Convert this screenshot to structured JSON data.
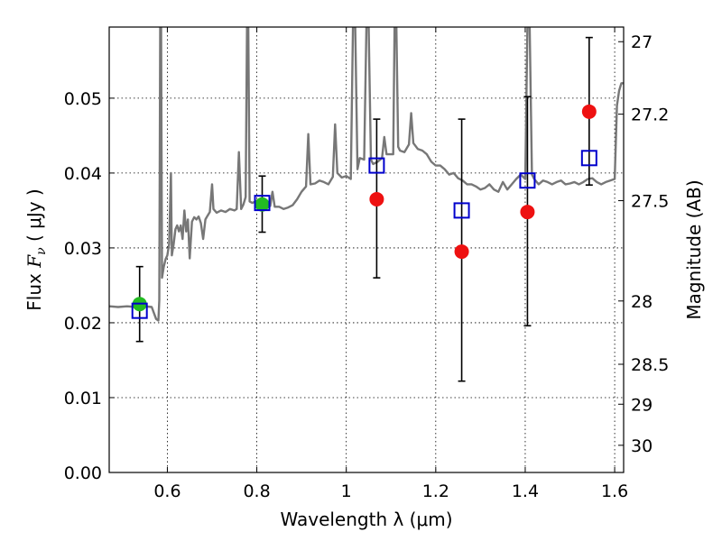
{
  "chart_data": {
    "type": "scatter",
    "title": "",
    "xlabel": "Wavelength  λ (μm)",
    "ylabel": "Flux  F_ν  ( μJy )",
    "ylabel_text": "Flux  ",
    "ylabel_sym": "F",
    "ylabel_sub": "ν",
    "ylabel_unit": "  ( μJy )",
    "y2label": "Magnitude (AB)",
    "xlim": [
      0.47,
      1.62
    ],
    "ylim": [
      0.0,
      0.0595
    ],
    "grid": true,
    "x_ticks": [
      0.6,
      0.8,
      1.0,
      1.2,
      1.4,
      1.6
    ],
    "x_tick_labels": [
      "0.6",
      "0.8",
      "1",
      "1.2",
      "1.4",
      "1.6"
    ],
    "y_ticks": [
      0.0,
      0.01,
      0.02,
      0.03,
      0.04,
      0.05
    ],
    "y_tick_labels": [
      "0.00",
      "0.01",
      "0.02",
      "0.03",
      "0.04",
      "0.05"
    ],
    "mag_ticks": [
      27,
      27.2,
      27.5,
      28,
      28.5,
      29,
      30
    ],
    "mag_tick_labels": [
      "27",
      "27.2",
      "27.5",
      "28",
      "28.5",
      "29",
      "30"
    ],
    "colors": {
      "spectrum": "#777777",
      "green_marker": "#22bb22",
      "red_marker": "#ee1111",
      "model_square": "#0000cc",
      "errorbar": "#000000"
    },
    "spectrum": [
      [
        0.47,
        0.0222
      ],
      [
        0.49,
        0.0221
      ],
      [
        0.51,
        0.0222
      ],
      [
        0.53,
        0.0221
      ],
      [
        0.55,
        0.0222
      ],
      [
        0.565,
        0.0221
      ],
      [
        0.575,
        0.0205
      ],
      [
        0.58,
        0.0203
      ],
      [
        0.582,
        0.023
      ],
      [
        0.584,
        0.0595
      ],
      [
        0.586,
        0.0595
      ],
      [
        0.588,
        0.026
      ],
      [
        0.592,
        0.0275
      ],
      [
        0.596,
        0.0285
      ],
      [
        0.6,
        0.029
      ],
      [
        0.604,
        0.0305
      ],
      [
        0.608,
        0.04
      ],
      [
        0.61,
        0.029
      ],
      [
        0.614,
        0.0305
      ],
      [
        0.618,
        0.0325
      ],
      [
        0.622,
        0.033
      ],
      [
        0.626,
        0.0322
      ],
      [
        0.63,
        0.033
      ],
      [
        0.634,
        0.0312
      ],
      [
        0.638,
        0.035
      ],
      [
        0.642,
        0.0322
      ],
      [
        0.646,
        0.0338
      ],
      [
        0.65,
        0.0286
      ],
      [
        0.655,
        0.0335
      ],
      [
        0.66,
        0.0341
      ],
      [
        0.665,
        0.0338
      ],
      [
        0.67,
        0.0342
      ],
      [
        0.675,
        0.0333
      ],
      [
        0.68,
        0.0312
      ],
      [
        0.685,
        0.0338
      ],
      [
        0.69,
        0.0343
      ],
      [
        0.695,
        0.0348
      ],
      [
        0.7,
        0.0385
      ],
      [
        0.703,
        0.0352
      ],
      [
        0.71,
        0.0347
      ],
      [
        0.72,
        0.035
      ],
      [
        0.73,
        0.0348
      ],
      [
        0.74,
        0.0352
      ],
      [
        0.75,
        0.035
      ],
      [
        0.755,
        0.0352
      ],
      [
        0.76,
        0.0428
      ],
      [
        0.765,
        0.0352
      ],
      [
        0.77,
        0.0358
      ],
      [
        0.775,
        0.0368
      ],
      [
        0.778,
        0.0595
      ],
      [
        0.781,
        0.0595
      ],
      [
        0.784,
        0.0362
      ],
      [
        0.79,
        0.036
      ],
      [
        0.8,
        0.0363
      ],
      [
        0.81,
        0.0366
      ],
      [
        0.82,
        0.036
      ],
      [
        0.83,
        0.0356
      ],
      [
        0.835,
        0.0375
      ],
      [
        0.84,
        0.0355
      ],
      [
        0.85,
        0.0355
      ],
      [
        0.86,
        0.0352
      ],
      [
        0.87,
        0.0354
      ],
      [
        0.88,
        0.0357
      ],
      [
        0.89,
        0.0365
      ],
      [
        0.9,
        0.0375
      ],
      [
        0.91,
        0.0382
      ],
      [
        0.915,
        0.0452
      ],
      [
        0.92,
        0.0385
      ],
      [
        0.93,
        0.0386
      ],
      [
        0.94,
        0.039
      ],
      [
        0.95,
        0.0388
      ],
      [
        0.96,
        0.0385
      ],
      [
        0.97,
        0.0395
      ],
      [
        0.975,
        0.0465
      ],
      [
        0.98,
        0.04
      ],
      [
        0.99,
        0.0394
      ],
      [
        1.0,
        0.0396
      ],
      [
        1.01,
        0.0392
      ],
      [
        1.015,
        0.0595
      ],
      [
        1.02,
        0.0595
      ],
      [
        1.025,
        0.0405
      ],
      [
        1.03,
        0.042
      ],
      [
        1.04,
        0.0418
      ],
      [
        1.045,
        0.0595
      ],
      [
        1.05,
        0.0595
      ],
      [
        1.055,
        0.0418
      ],
      [
        1.06,
        0.0412
      ],
      [
        1.07,
        0.0415
      ],
      [
        1.08,
        0.042
      ],
      [
        1.085,
        0.0448
      ],
      [
        1.09,
        0.0425
      ],
      [
        1.1,
        0.0425
      ],
      [
        1.105,
        0.0425
      ],
      [
        1.108,
        0.0595
      ],
      [
        1.112,
        0.0595
      ],
      [
        1.116,
        0.0435
      ],
      [
        1.12,
        0.043
      ],
      [
        1.13,
        0.0428
      ],
      [
        1.14,
        0.0438
      ],
      [
        1.145,
        0.048
      ],
      [
        1.15,
        0.044
      ],
      [
        1.16,
        0.0432
      ],
      [
        1.17,
        0.043
      ],
      [
        1.18,
        0.0425
      ],
      [
        1.19,
        0.0415
      ],
      [
        1.2,
        0.041
      ],
      [
        1.21,
        0.041
      ],
      [
        1.22,
        0.0405
      ],
      [
        1.23,
        0.0398
      ],
      [
        1.24,
        0.04
      ],
      [
        1.25,
        0.0393
      ],
      [
        1.26,
        0.039
      ],
      [
        1.27,
        0.0385
      ],
      [
        1.28,
        0.0385
      ],
      [
        1.29,
        0.0382
      ],
      [
        1.3,
        0.0378
      ],
      [
        1.31,
        0.038
      ],
      [
        1.32,
        0.0385
      ],
      [
        1.33,
        0.0378
      ],
      [
        1.34,
        0.0375
      ],
      [
        1.35,
        0.0388
      ],
      [
        1.36,
        0.0378
      ],
      [
        1.37,
        0.0385
      ],
      [
        1.38,
        0.0392
      ],
      [
        1.39,
        0.0398
      ],
      [
        1.4,
        0.0392
      ],
      [
        1.405,
        0.0595
      ],
      [
        1.41,
        0.0595
      ],
      [
        1.415,
        0.0398
      ],
      [
        1.42,
        0.0392
      ],
      [
        1.43,
        0.0385
      ],
      [
        1.44,
        0.039
      ],
      [
        1.45,
        0.0388
      ],
      [
        1.46,
        0.0385
      ],
      [
        1.47,
        0.0388
      ],
      [
        1.48,
        0.039
      ],
      [
        1.49,
        0.0385
      ],
      [
        1.5,
        0.0386
      ],
      [
        1.51,
        0.0388
      ],
      [
        1.52,
        0.0385
      ],
      [
        1.53,
        0.0388
      ],
      [
        1.54,
        0.0392
      ],
      [
        1.55,
        0.0393
      ],
      [
        1.56,
        0.0388
      ],
      [
        1.57,
        0.0385
      ],
      [
        1.58,
        0.0388
      ],
      [
        1.59,
        0.039
      ],
      [
        1.6,
        0.0392
      ],
      [
        1.605,
        0.049
      ],
      [
        1.61,
        0.051
      ],
      [
        1.615,
        0.052
      ],
      [
        1.62,
        0.052
      ]
    ],
    "series": [
      {
        "name": "green",
        "marker": "circle",
        "x": [
          0.538,
          0.812
        ],
        "y": [
          0.0225,
          0.0358
        ]
      },
      {
        "name": "red",
        "marker": "circle",
        "x": [
          1.068,
          1.258,
          1.405,
          1.543
        ],
        "y": [
          0.0365,
          0.0295,
          0.0348,
          0.0482
        ]
      },
      {
        "name": "blue",
        "marker": "open-square",
        "x": [
          0.538,
          0.812,
          1.068,
          1.258,
          1.405,
          1.543
        ],
        "y": [
          0.0216,
          0.036,
          0.041,
          0.035,
          0.039,
          0.042
        ]
      }
    ],
    "errorbars": [
      {
        "x": 0.538,
        "low": 0.0175,
        "high": 0.0275
      },
      {
        "x": 0.812,
        "low": 0.0321,
        "high": 0.0396
      },
      {
        "x": 1.068,
        "low": 0.026,
        "high": 0.0472
      },
      {
        "x": 1.258,
        "low": 0.0122,
        "high": 0.0472
      },
      {
        "x": 1.405,
        "low": 0.0196,
        "high": 0.0502
      },
      {
        "x": 1.543,
        "low": 0.0384,
        "high": 0.0581
      }
    ]
  }
}
